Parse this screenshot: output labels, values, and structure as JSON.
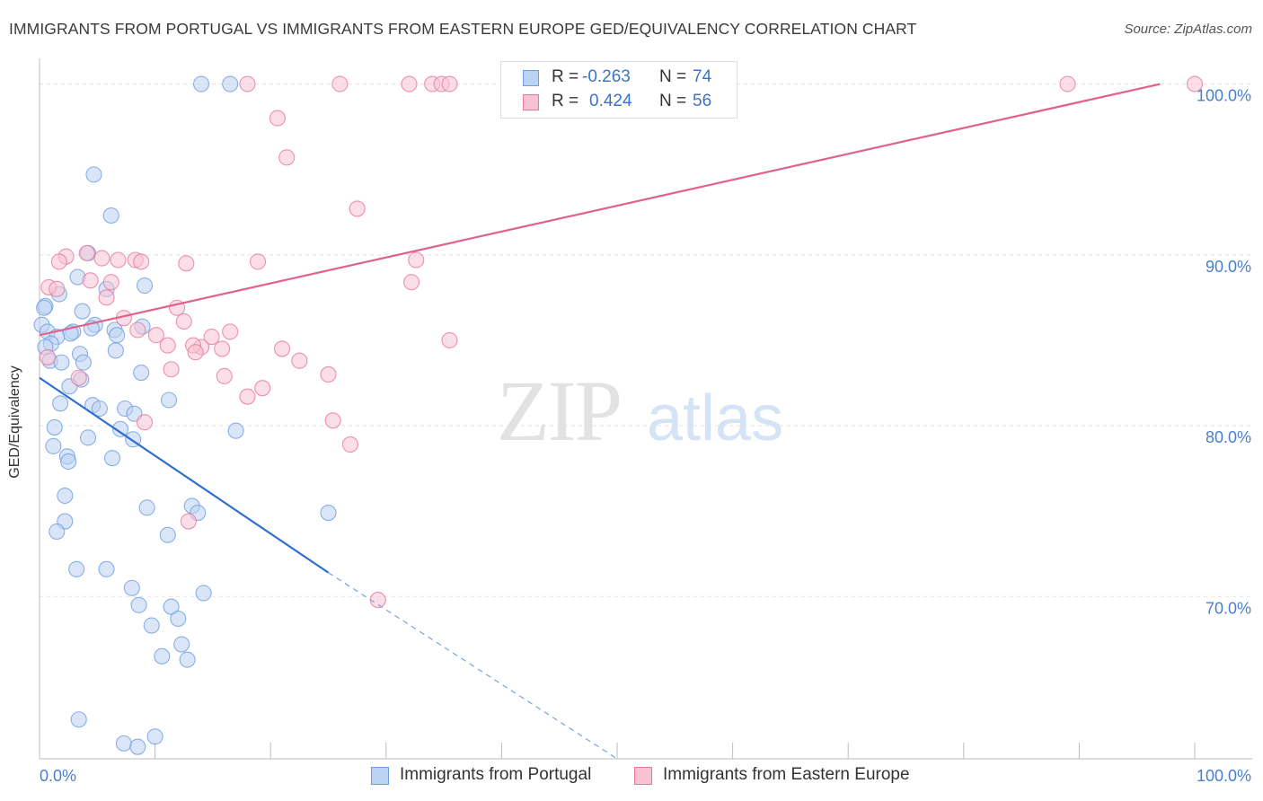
{
  "title": "IMMIGRANTS FROM PORTUGAL VS IMMIGRANTS FROM EASTERN EUROPE GED/EQUIVALENCY CORRELATION CHART",
  "source": "Source: ZipAtlas.com",
  "watermark": {
    "zip": "ZIP",
    "atlas": "atlas"
  },
  "legend_stats": [
    {
      "r_label": "R =",
      "r_value": "-0.263",
      "n_label": "N =",
      "n_value": "74"
    },
    {
      "r_label": "R =",
      "r_value": "0.424",
      "n_label": "N =",
      "n_value": "56"
    }
  ],
  "chart_data": {
    "type": "scatter",
    "xlabel": "",
    "ylabel": "GED/Equivalency",
    "xlim": [
      0,
      100
    ],
    "ylim": [
      60.5,
      101.5
    ],
    "x_tick_labels": [
      "0.0%",
      "100.0%"
    ],
    "y_ticks": [
      70,
      80,
      90,
      100
    ],
    "y_tick_labels": [
      "70.0%",
      "80.0%",
      "90.0%",
      "100.0%"
    ],
    "grid": "dashed-horizontal",
    "legend": "bottom",
    "series": [
      {
        "name": "Immigrants from Portugal",
        "color": "#6e9fe0",
        "fill": "#bcd2f2",
        "trend": {
          "x1": 0,
          "y1": 82.8,
          "x2": 25,
          "y2": 71.4,
          "dash_to_x": 50,
          "dash_to_y": 60.5
        },
        "points": [
          [
            14,
            100
          ],
          [
            16.5,
            100
          ],
          [
            4.7,
            94.7
          ],
          [
            6.2,
            92.3
          ],
          [
            4.2,
            90.1
          ],
          [
            3.3,
            88.7
          ],
          [
            9.1,
            88.2
          ],
          [
            5.8,
            88.0
          ],
          [
            1.7,
            87.7
          ],
          [
            0.5,
            87.0
          ],
          [
            0.4,
            86.9
          ],
          [
            3.7,
            86.7
          ],
          [
            4.8,
            85.9
          ],
          [
            8.9,
            85.8
          ],
          [
            0.2,
            85.9
          ],
          [
            4.5,
            85.7
          ],
          [
            6.5,
            85.6
          ],
          [
            0.7,
            85.5
          ],
          [
            2.9,
            85.5
          ],
          [
            2.7,
            85.4
          ],
          [
            1.5,
            85.2
          ],
          [
            6.7,
            85.3
          ],
          [
            1.0,
            84.8
          ],
          [
            0.5,
            84.6
          ],
          [
            6.6,
            84.4
          ],
          [
            3.5,
            84.2
          ],
          [
            0.9,
            83.8
          ],
          [
            3.8,
            83.7
          ],
          [
            1.9,
            83.7
          ],
          [
            8.8,
            83.1
          ],
          [
            3.6,
            82.7
          ],
          [
            2.6,
            82.3
          ],
          [
            1.8,
            81.3
          ],
          [
            11.2,
            81.5
          ],
          [
            4.6,
            81.2
          ],
          [
            5.2,
            81.0
          ],
          [
            7.4,
            81.0
          ],
          [
            8.2,
            80.7
          ],
          [
            1.3,
            79.9
          ],
          [
            7.0,
            79.8
          ],
          [
            17.0,
            79.7
          ],
          [
            4.2,
            79.3
          ],
          [
            8.1,
            79.2
          ],
          [
            1.2,
            78.8
          ],
          [
            2.4,
            78.2
          ],
          [
            6.3,
            78.1
          ],
          [
            2.5,
            77.9
          ],
          [
            2.2,
            75.9
          ],
          [
            9.3,
            75.2
          ],
          [
            13.2,
            75.3
          ],
          [
            13.7,
            74.9
          ],
          [
            25.0,
            74.9
          ],
          [
            2.2,
            74.4
          ],
          [
            1.5,
            73.8
          ],
          [
            11.1,
            73.6
          ],
          [
            3.2,
            71.6
          ],
          [
            5.8,
            71.6
          ],
          [
            8.0,
            70.5
          ],
          [
            14.2,
            70.2
          ],
          [
            8.6,
            69.5
          ],
          [
            11.4,
            69.4
          ],
          [
            12.0,
            68.7
          ],
          [
            9.7,
            68.3
          ],
          [
            12.3,
            67.2
          ],
          [
            10.6,
            66.5
          ],
          [
            12.8,
            66.3
          ],
          [
            3.4,
            62.8
          ],
          [
            10.0,
            61.8
          ],
          [
            7.3,
            61.4
          ],
          [
            8.5,
            61.2
          ]
        ]
      },
      {
        "name": "Immigrants from Eastern Europe",
        "color": "#e8789a",
        "fill": "#f7c3d3",
        "trend": {
          "x1": 0,
          "y1": 85.3,
          "x2": 97,
          "y2": 100
        },
        "points": [
          [
            18,
            100
          ],
          [
            26,
            100
          ],
          [
            32,
            100
          ],
          [
            34,
            100
          ],
          [
            34.8,
            100
          ],
          [
            35.5,
            100
          ],
          [
            89,
            100
          ],
          [
            100,
            100
          ],
          [
            20.6,
            98.0
          ],
          [
            21.4,
            95.7
          ],
          [
            27.5,
            92.7
          ],
          [
            4.1,
            90.1
          ],
          [
            2.3,
            89.9
          ],
          [
            1.7,
            89.6
          ],
          [
            5.4,
            89.8
          ],
          [
            6.8,
            89.7
          ],
          [
            8.3,
            89.7
          ],
          [
            8.8,
            89.6
          ],
          [
            12.7,
            89.5
          ],
          [
            18.9,
            89.6
          ],
          [
            32.6,
            89.7
          ],
          [
            32.2,
            88.4
          ],
          [
            4.4,
            88.5
          ],
          [
            6.2,
            88.4
          ],
          [
            0.8,
            88.1
          ],
          [
            1.5,
            88.0
          ],
          [
            5.8,
            87.5
          ],
          [
            11.9,
            86.9
          ],
          [
            7.3,
            86.3
          ],
          [
            12.5,
            86.1
          ],
          [
            8.5,
            85.6
          ],
          [
            16.5,
            85.5
          ],
          [
            14.9,
            85.2
          ],
          [
            10.1,
            85.3
          ],
          [
            35.5,
            85.0
          ],
          [
            11.1,
            84.7
          ],
          [
            14.0,
            84.6
          ],
          [
            13.3,
            84.7
          ],
          [
            15.8,
            84.5
          ],
          [
            21.0,
            84.5
          ],
          [
            13.5,
            84.3
          ],
          [
            0.7,
            84.0
          ],
          [
            22.5,
            83.8
          ],
          [
            11.4,
            83.3
          ],
          [
            25.0,
            83.0
          ],
          [
            16.0,
            82.9
          ],
          [
            3.4,
            82.8
          ],
          [
            19.3,
            82.2
          ],
          [
            18.0,
            81.7
          ],
          [
            25.4,
            80.3
          ],
          [
            9.1,
            80.2
          ],
          [
            26.9,
            78.9
          ],
          [
            12.9,
            74.4
          ],
          [
            29.3,
            69.8
          ]
        ]
      }
    ]
  }
}
